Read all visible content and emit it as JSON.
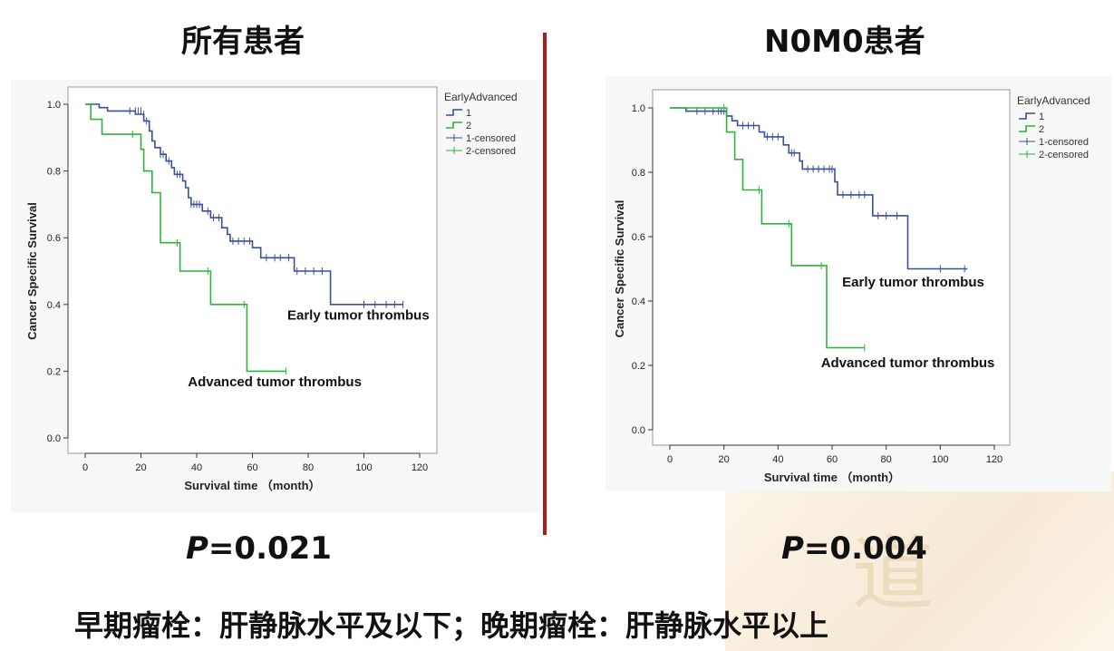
{
  "left_title": "所有患者",
  "right_title": "N0M0患者",
  "left_p": {
    "label": "P",
    "value": "=0.021"
  },
  "right_p": {
    "label": "P",
    "value": "=0.004"
  },
  "footer": "早期瘤栓：肝静脉水平及以下；晚期瘤栓：肝静脉水平以上",
  "watermark_text": "道",
  "colors": {
    "early": "#3a4f9c",
    "advanced": "#2fb23a",
    "divider": "#b0191e"
  },
  "chart_data": [
    {
      "type": "line",
      "step": true,
      "xlabel": "Survival time （month）",
      "ylabel": "Cancer Specific Survival",
      "xlim": [
        0,
        120
      ],
      "ylim": [
        0.0,
        1.0
      ],
      "xticks": [
        "0",
        "20",
        "40",
        "60",
        "80",
        "100",
        "120"
      ],
      "yticks": [
        "0.0",
        "0.2",
        "0.4",
        "0.6",
        "0.8",
        "1.0"
      ],
      "legend": {
        "title": "EarlyAdvanced",
        "entries": [
          "1",
          "2",
          "1-censored",
          "2-censored"
        ],
        "placement": "right"
      },
      "annotations": [
        {
          "text": "Early tumor thrombus",
          "x": 98,
          "y": 0.355
        },
        {
          "text": "Advanced tumor thrombus",
          "x": 68,
          "y": 0.155
        }
      ],
      "series": [
        {
          "name": "1",
          "points": [
            [
              0,
              1.0
            ],
            [
              5,
              1.0
            ],
            [
              5,
              0.99
            ],
            [
              8,
              0.99
            ],
            [
              8,
              0.98
            ],
            [
              18,
              0.98
            ],
            [
              18,
              0.97
            ],
            [
              21,
              0.97
            ],
            [
              21,
              0.95
            ],
            [
              23,
              0.95
            ],
            [
              23,
              0.92
            ],
            [
              24,
              0.92
            ],
            [
              24,
              0.89
            ],
            [
              25,
              0.89
            ],
            [
              25,
              0.87
            ],
            [
              27,
              0.87
            ],
            [
              27,
              0.85
            ],
            [
              29,
              0.85
            ],
            [
              29,
              0.83
            ],
            [
              31,
              0.83
            ],
            [
              31,
              0.81
            ],
            [
              32,
              0.81
            ],
            [
              32,
              0.79
            ],
            [
              35,
              0.79
            ],
            [
              35,
              0.77
            ],
            [
              36,
              0.77
            ],
            [
              36,
              0.75
            ],
            [
              37,
              0.75
            ],
            [
              37,
              0.72
            ],
            [
              38,
              0.72
            ],
            [
              38,
              0.7
            ],
            [
              42,
              0.7
            ],
            [
              42,
              0.68
            ],
            [
              45,
              0.68
            ],
            [
              45,
              0.66
            ],
            [
              49,
              0.66
            ],
            [
              49,
              0.63
            ],
            [
              51,
              0.63
            ],
            [
              51,
              0.61
            ],
            [
              52,
              0.61
            ],
            [
              52,
              0.59
            ],
            [
              60,
              0.59
            ],
            [
              60,
              0.57
            ],
            [
              63,
              0.57
            ],
            [
              63,
              0.54
            ],
            [
              75,
              0.54
            ],
            [
              75,
              0.5
            ],
            [
              88,
              0.5
            ],
            [
              88,
              0.4
            ],
            [
              114,
              0.4
            ]
          ],
          "censored": [
            [
              16,
              0.98
            ],
            [
              18,
              0.98
            ],
            [
              19,
              0.98
            ],
            [
              20,
              0.98
            ],
            [
              21,
              0.97
            ],
            [
              22,
              0.95
            ],
            [
              27,
              0.85
            ],
            [
              28,
              0.85
            ],
            [
              30,
              0.83
            ],
            [
              33,
              0.79
            ],
            [
              34,
              0.79
            ],
            [
              38,
              0.7
            ],
            [
              39,
              0.7
            ],
            [
              40,
              0.7
            ],
            [
              41,
              0.7
            ],
            [
              44,
              0.68
            ],
            [
              46,
              0.66
            ],
            [
              48,
              0.66
            ],
            [
              53,
              0.59
            ],
            [
              55,
              0.59
            ],
            [
              57,
              0.59
            ],
            [
              59,
              0.59
            ],
            [
              65,
              0.54
            ],
            [
              68,
              0.54
            ],
            [
              70,
              0.54
            ],
            [
              73,
              0.54
            ],
            [
              76,
              0.5
            ],
            [
              79,
              0.5
            ],
            [
              82,
              0.5
            ],
            [
              85,
              0.5
            ],
            [
              100,
              0.4
            ],
            [
              104,
              0.4
            ],
            [
              108,
              0.4
            ],
            [
              111,
              0.4
            ],
            [
              114,
              0.4
            ]
          ]
        },
        {
          "name": "2",
          "points": [
            [
              0,
              1.0
            ],
            [
              2,
              1.0
            ],
            [
              2,
              0.955
            ],
            [
              6,
              0.955
            ],
            [
              6,
              0.91
            ],
            [
              20,
              0.91
            ],
            [
              20,
              0.865
            ],
            [
              21,
              0.865
            ],
            [
              21,
              0.8
            ],
            [
              24,
              0.8
            ],
            [
              24,
              0.735
            ],
            [
              27,
              0.735
            ],
            [
              27,
              0.585
            ],
            [
              34,
              0.585
            ],
            [
              34,
              0.5
            ],
            [
              45,
              0.5
            ],
            [
              45,
              0.4
            ],
            [
              58,
              0.4
            ],
            [
              58,
              0.2
            ],
            [
              72,
              0.2
            ]
          ],
          "censored": [
            [
              17,
              0.91
            ],
            [
              33,
              0.585
            ],
            [
              44,
              0.5
            ],
            [
              57,
              0.4
            ],
            [
              72,
              0.2
            ]
          ]
        }
      ]
    },
    {
      "type": "line",
      "step": true,
      "xlabel": "Survival time （month）",
      "ylabel": "Cancer Specific Survival",
      "xlim": [
        0,
        120
      ],
      "ylim": [
        0.0,
        1.0
      ],
      "xticks": [
        "0",
        "20",
        "40",
        "60",
        "80",
        "100",
        "120"
      ],
      "yticks": [
        "0.0",
        "0.2",
        "0.4",
        "0.6",
        "0.8",
        "1.0"
      ],
      "legend": {
        "title": "EarlyAdvanced",
        "entries": [
          "1",
          "2",
          "1-censored",
          "2-censored"
        ],
        "placement": "right"
      },
      "annotations": [
        {
          "text": "Early tumor thrombus",
          "x": 90,
          "y": 0.445
        },
        {
          "text": "Advanced tumor thrombus",
          "x": 88,
          "y": 0.195
        }
      ],
      "series": [
        {
          "name": "1",
          "points": [
            [
              0,
              1.0
            ],
            [
              6,
              1.0
            ],
            [
              6,
              0.99
            ],
            [
              21,
              0.99
            ],
            [
              21,
              0.975
            ],
            [
              23,
              0.975
            ],
            [
              23,
              0.96
            ],
            [
              25,
              0.96
            ],
            [
              25,
              0.945
            ],
            [
              33,
              0.945
            ],
            [
              33,
              0.925
            ],
            [
              35,
              0.925
            ],
            [
              35,
              0.91
            ],
            [
              42,
              0.91
            ],
            [
              42,
              0.885
            ],
            [
              44,
              0.885
            ],
            [
              44,
              0.86
            ],
            [
              48,
              0.86
            ],
            [
              48,
              0.835
            ],
            [
              49,
              0.835
            ],
            [
              49,
              0.81
            ],
            [
              61,
              0.81
            ],
            [
              61,
              0.77
            ],
            [
              62,
              0.77
            ],
            [
              62,
              0.73
            ],
            [
              75,
              0.73
            ],
            [
              75,
              0.665
            ],
            [
              88,
              0.665
            ],
            [
              88,
              0.5
            ],
            [
              110,
              0.5
            ]
          ],
          "censored": [
            [
              10,
              0.99
            ],
            [
              13,
              0.99
            ],
            [
              16,
              0.99
            ],
            [
              18,
              0.99
            ],
            [
              19,
              0.99
            ],
            [
              20,
              0.99
            ],
            [
              27,
              0.945
            ],
            [
              29,
              0.945
            ],
            [
              31,
              0.945
            ],
            [
              36,
              0.91
            ],
            [
              38,
              0.91
            ],
            [
              40,
              0.91
            ],
            [
              45,
              0.86
            ],
            [
              46,
              0.86
            ],
            [
              51,
              0.81
            ],
            [
              53,
              0.81
            ],
            [
              55,
              0.81
            ],
            [
              57,
              0.81
            ],
            [
              59,
              0.81
            ],
            [
              60,
              0.81
            ],
            [
              64,
              0.73
            ],
            [
              67,
              0.73
            ],
            [
              70,
              0.73
            ],
            [
              72,
              0.73
            ],
            [
              77,
              0.665
            ],
            [
              80,
              0.665
            ],
            [
              84,
              0.665
            ],
            [
              100,
              0.5
            ],
            [
              109,
              0.5
            ]
          ]
        },
        {
          "name": "2",
          "points": [
            [
              0,
              1.0
            ],
            [
              21,
              1.0
            ],
            [
              21,
              0.925
            ],
            [
              24,
              0.925
            ],
            [
              24,
              0.84
            ],
            [
              27,
              0.84
            ],
            [
              27,
              0.745
            ],
            [
              34,
              0.745
            ],
            [
              34,
              0.64
            ],
            [
              45,
              0.64
            ],
            [
              45,
              0.51
            ],
            [
              58,
              0.51
            ],
            [
              58,
              0.255
            ],
            [
              72,
              0.255
            ]
          ],
          "censored": [
            [
              20,
              1.0
            ],
            [
              33,
              0.745
            ],
            [
              44,
              0.64
            ],
            [
              56,
              0.51
            ],
            [
              72,
              0.255
            ]
          ]
        }
      ]
    }
  ]
}
